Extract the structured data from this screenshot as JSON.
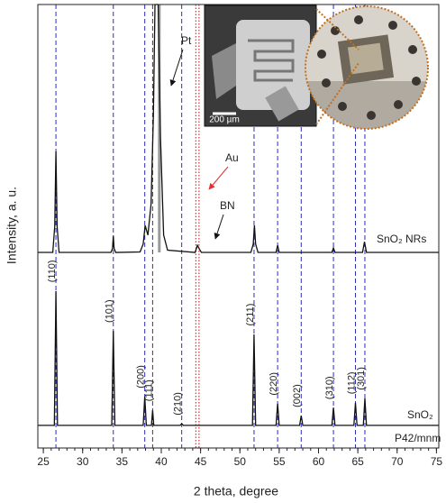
{
  "chart_data": {
    "type": "line",
    "x_label": "2 theta, degree",
    "y_label": "Intensity, a. u.",
    "xlim": [
      24.3,
      75.3
    ],
    "ylim": [
      0,
      100
    ],
    "xticks": [
      25,
      30,
      35,
      40,
      45,
      50,
      55,
      60,
      65,
      70,
      75
    ],
    "xminorticks": [
      25,
      26,
      27,
      28,
      29,
      30,
      31,
      32,
      33,
      34,
      35,
      36,
      37,
      38,
      39,
      40,
      41,
      42,
      43,
      44,
      45,
      46,
      47,
      48,
      49,
      50,
      51,
      52,
      53,
      54,
      55,
      56,
      57,
      58,
      59,
      60,
      61,
      62,
      63,
      64,
      65,
      66,
      67,
      68,
      69,
      70,
      71,
      72,
      73,
      74,
      75
    ],
    "series": [
      {
        "name": "SnO₂ NRs",
        "color": "#111111",
        "x": [
          24.3,
          26.2,
          26.45,
          26.6,
          26.75,
          27.0,
          33.6,
          33.8,
          33.9,
          34.0,
          34.2,
          37.3,
          37.7,
          37.95,
          38.3,
          38.7,
          39.0,
          39.2,
          39.6,
          39.9,
          40.3,
          40.8,
          44.3,
          44.6,
          44.8,
          45.1,
          51.4,
          51.7,
          51.85,
          52.0,
          52.3,
          54.6,
          54.8,
          55.0,
          61.7,
          61.9,
          62.1,
          65.6,
          65.85,
          66.1,
          75.3
        ],
        "values": [
          44.1,
          44.1,
          50,
          66.9,
          50,
          44.1,
          44.1,
          45,
          47.8,
          45,
          44.1,
          44.2,
          46,
          50.2,
          48,
          55,
          75,
          100,
          100,
          70,
          48,
          44.6,
          44.1,
          45.7,
          45,
          44.1,
          44.1,
          46,
          50.2,
          46,
          44.1,
          44.1,
          45.7,
          44.1,
          44.1,
          45.1,
          44.1,
          44.1,
          46.5,
          44.1,
          44.1
        ]
      },
      {
        "name": "SnO₂",
        "color": "#111111",
        "x": [
          24.3,
          26.4,
          26.6,
          26.8,
          33.7,
          33.9,
          34.1,
          37.7,
          37.9,
          38.1,
          38.75,
          38.9,
          39.05,
          42.4,
          42.6,
          42.8,
          51.6,
          51.8,
          52.0,
          54.6,
          54.8,
          55.0,
          57.6,
          57.8,
          58.0,
          61.7,
          61.9,
          62.1,
          64.5,
          64.7,
          64.9,
          65.7,
          65.9,
          66.1,
          75.3
        ],
        "values": [
          5.1,
          5.1,
          35.4,
          5.1,
          5.1,
          26.4,
          5.1,
          5.1,
          11.6,
          5.1,
          5.1,
          8.5,
          5.1,
          5.1,
          5.5,
          5.1,
          5.1,
          25.6,
          5.1,
          5.1,
          10,
          5.1,
          5.1,
          7.3,
          5.1,
          5.1,
          9.1,
          5.1,
          5.1,
          10.2,
          5.1,
          5.1,
          11.2,
          5.1,
          5.1
        ]
      }
    ],
    "reference_lines": {
      "color": "#2b2bcc",
      "positions": [
        26.6,
        33.9,
        37.9,
        38.9,
        42.6,
        51.8,
        54.8,
        57.8,
        61.9,
        64.7,
        65.9
      ],
      "labels": [
        "(110)",
        "(101)",
        "(200)",
        "(111)",
        "(210)",
        "(211)",
        "(220)",
        "(002)",
        "(310)",
        "(112)",
        "(301)"
      ]
    },
    "au_lines": {
      "color": "#e03030",
      "positions": [
        44.4,
        44.8
      ]
    },
    "pt_line": {
      "color": "#999999",
      "position": 39.75
    },
    "annotations": {
      "pt": "Pt",
      "au": "Au",
      "bn": "BN",
      "space_group": "P42/mnm"
    },
    "inset": {
      "scale_bar": "200 µm"
    }
  }
}
